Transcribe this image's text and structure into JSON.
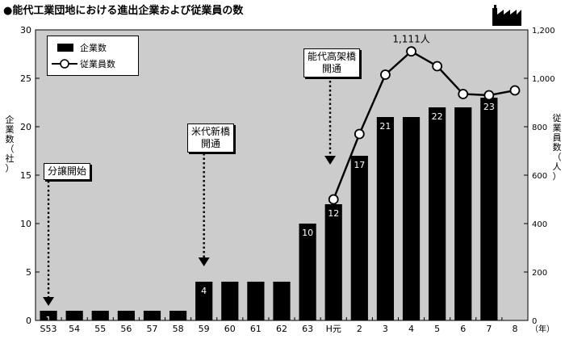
{
  "title": "●能代工業団地における進出企業および従業員の数",
  "left_axis_title": "企業数（社）",
  "right_axis_title": "従業員数（人）",
  "x_unit": "（年）",
  "legend": {
    "companies": "企業数",
    "employees": "従業員数"
  },
  "notes": {
    "bunjo": "分譲開始",
    "yoneshiro": [
      "米代新橋",
      "開通"
    ],
    "noshiro": [
      "能代高架橋",
      "開通"
    ]
  },
  "peak_label": "1,111人",
  "colors": {
    "background": "#cccccc",
    "bar": "#000000",
    "line": "#000000"
  },
  "icons": {
    "factory": "factory-icon"
  },
  "chart_data": {
    "type": "bar+line",
    "categories": [
      "S53",
      "54",
      "55",
      "56",
      "57",
      "58",
      "59",
      "60",
      "61",
      "62",
      "63",
      "H元",
      "2",
      "3",
      "4",
      "5",
      "6",
      "7",
      "8"
    ],
    "series": [
      {
        "name": "企業数",
        "type": "bar",
        "axis": "left",
        "values": [
          1,
          1,
          1,
          1,
          1,
          1,
          4,
          4,
          4,
          4,
          10,
          12,
          17,
          21,
          21,
          22,
          22,
          23,
          null
        ],
        "labels": [
          "1",
          "",
          "",
          "",
          "",
          "",
          "4",
          "",
          "",
          "",
          "10",
          "12",
          "17",
          "21",
          "",
          "22",
          "",
          "23",
          ""
        ]
      },
      {
        "name": "従業員数",
        "type": "line",
        "axis": "right",
        "values": [
          null,
          null,
          null,
          null,
          null,
          null,
          null,
          null,
          null,
          null,
          null,
          500,
          770,
          1015,
          1111,
          1050,
          935,
          930,
          950
        ]
      }
    ],
    "y_left": {
      "min": 0,
      "max": 30,
      "ticks": [
        "0",
        "5",
        "10",
        "15",
        "20",
        "25",
        "30"
      ]
    },
    "y_right": {
      "min": 0,
      "max": 1200,
      "ticks": [
        "0",
        "200",
        "400",
        "600",
        "800",
        "1,000",
        "1,200"
      ]
    },
    "grid": false,
    "legend_position": "top-left"
  }
}
